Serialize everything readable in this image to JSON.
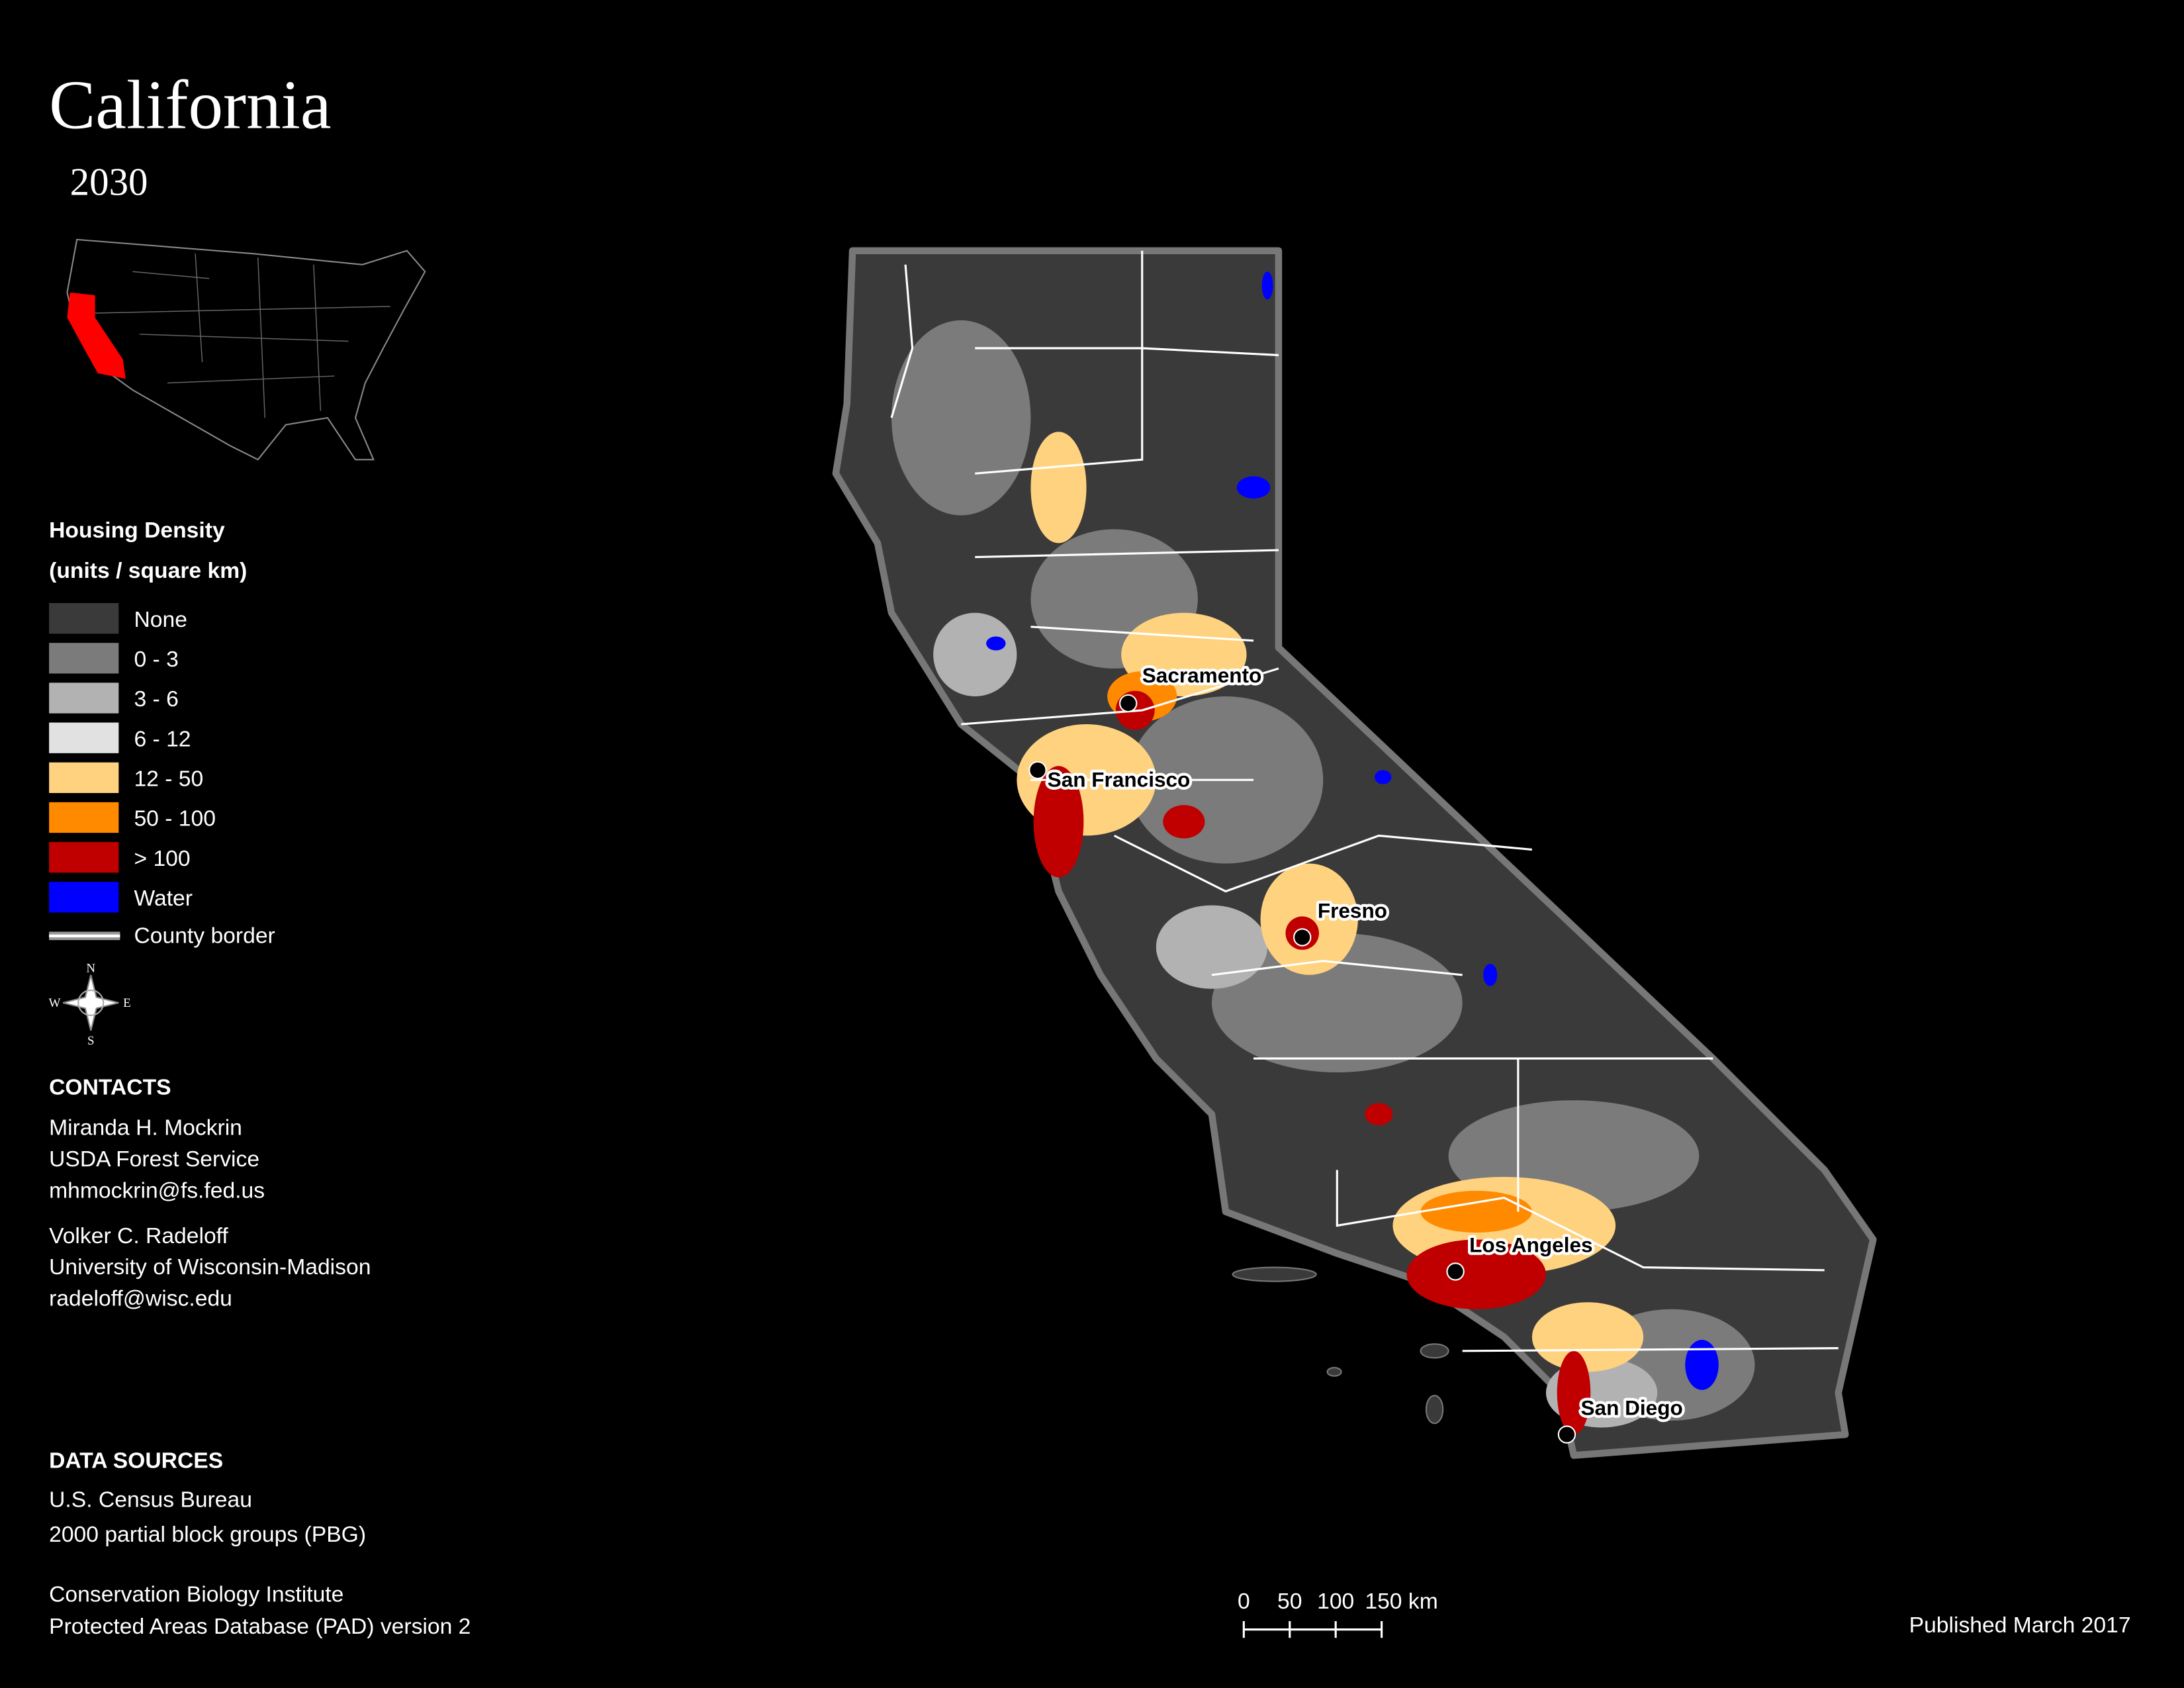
{
  "header": {
    "title": "California",
    "subtitle": "2030"
  },
  "legend": {
    "title": "Housing Density",
    "subtitle": "(units / square km)",
    "items": [
      {
        "label": "None",
        "color": "#3a3a3a"
      },
      {
        "label": "0 - 3",
        "color": "#7b7b7b"
      },
      {
        "label": "3 - 6",
        "color": "#b2b2b2"
      },
      {
        "label": "6 - 12",
        "color": "#e1e1e1"
      },
      {
        "label": "12 - 50",
        "color": "#ffd27f"
      },
      {
        "label": "50 - 100",
        "color": "#ff8a00"
      },
      {
        "label": "> 100",
        "color": "#c00000"
      },
      {
        "label": "Water",
        "color": "#0000ff"
      }
    ],
    "border_label": "County border"
  },
  "compass": {
    "n": "N",
    "s": "S",
    "e": "E",
    "w": "W"
  },
  "contacts": {
    "title": "CONTACTS",
    "people": [
      [
        "Miranda H. Mockrin",
        "USDA Forest Service",
        "mhmockrin@fs.fed.us"
      ],
      [
        "Volker C. Radeloff",
        "University of Wisconsin-Madison",
        "radeloff@wisc.edu"
      ]
    ]
  },
  "sources": {
    "title": "DATA SOURCES",
    "lines": [
      "U.S. Census Bureau",
      "2000 partial block groups (PBG)",
      "Conservation Biology Institute",
      "Protected Areas Database (PAD) version 2"
    ]
  },
  "cities": [
    "Sacramento",
    "San Francisco",
    "Fresno",
    "Los Angeles",
    "San Diego"
  ],
  "scale_bar": [
    "0",
    "50",
    "100",
    "150 km"
  ],
  "footer": "Published March 2017"
}
